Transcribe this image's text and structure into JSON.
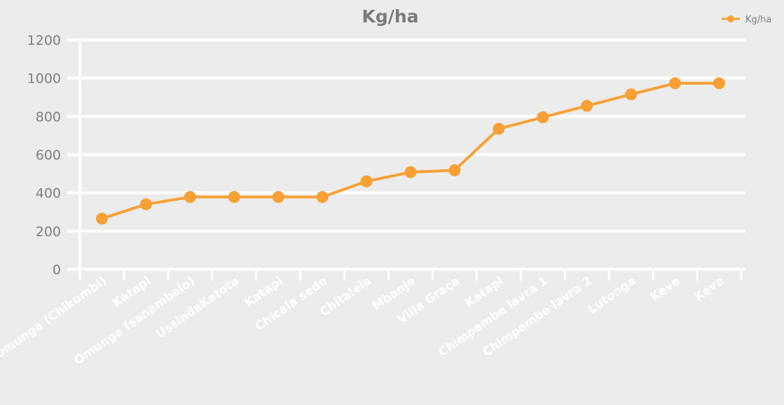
{
  "colors": {
    "background": "#ececec",
    "series": "#f7a035",
    "grid": "#ffffff",
    "tick_text": "#7f7f7f",
    "title_text": "#7b7b7b",
    "x_label_text": "#ffffff"
  },
  "chart_data": {
    "type": "line",
    "title": "Kg/ha",
    "xlabel": "",
    "ylabel": "",
    "categories": [
      "Omunga (Chikumbi)",
      "Katapi",
      "Omunga (sanambelo)",
      "UssindaKatota",
      "Katapi",
      "Chicala sede",
      "Chitalela",
      "Mbanje",
      "Villa Graça",
      "Katapi",
      "Chimpembe lavra 1",
      "Chimpembe lavra 2",
      "Lutonga",
      "Keve",
      "Keve"
    ],
    "series": [
      {
        "name": "Kg/ha",
        "values": [
          265,
          340,
          378,
          378,
          378,
          378,
          460,
          508,
          518,
          735,
          795,
          855,
          915,
          973,
          973
        ]
      }
    ],
    "ylim": [
      0,
      1200
    ],
    "yticks": [
      "0",
      "200",
      "400",
      "600",
      "800",
      "1000",
      "1200"
    ],
    "grid": true,
    "legend": "top-right"
  }
}
